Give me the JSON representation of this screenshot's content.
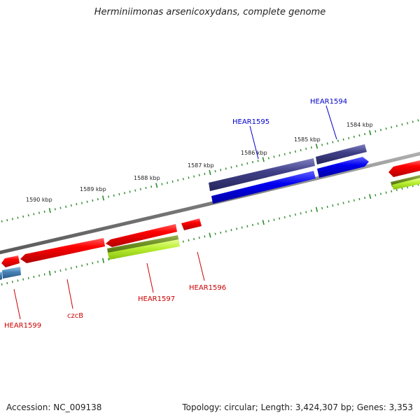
{
  "title": "Herminiimonas arsenicoxydans, complete genome",
  "footer": {
    "accession": "Accession: NC_009138",
    "stats": "Topology: circular; Length: 3,424,307 bp; Genes: 3,353"
  },
  "colors": {
    "backbone": "#7f7f7f",
    "tick": "#2e8b2e",
    "gene_red": "#e00000",
    "gene_purple": "#3d3d80",
    "gene_blue": "#0000ee",
    "gene_olive": "#6b8e23",
    "gene_lime": "#b0e030",
    "gene_steel": "#4682b4",
    "label_red": "#cc0000",
    "label_blue": "#0000cc"
  },
  "scale_labels": [
    "1590 kbp",
    "1589 kbp",
    "1588 kbp",
    "1587 kbp",
    "1586 kbp",
    "1585 kbp",
    "1584 kbp"
  ],
  "gene_labels": [
    "HEAR1595",
    "HEAR1594",
    "HEAR1599",
    "czcB",
    "HEAR1597",
    "HEAR1596"
  ]
}
